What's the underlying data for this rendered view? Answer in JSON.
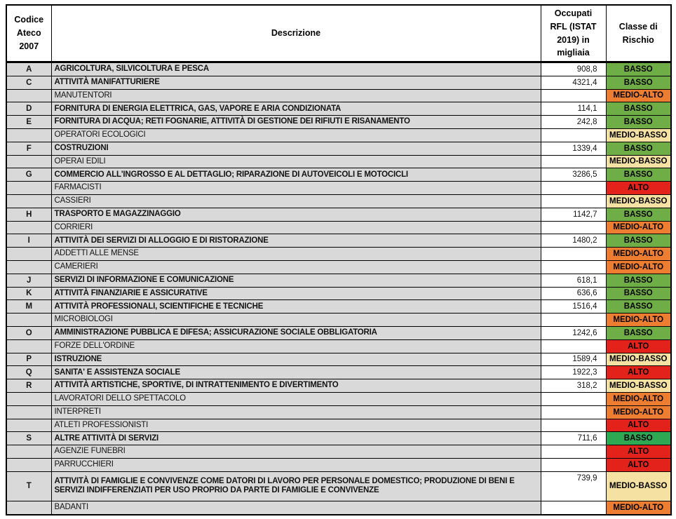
{
  "page": {
    "background_color": "#ffffff",
    "border_color": "#000000",
    "row_gray": "#d9d9d9"
  },
  "table": {
    "headers": {
      "code": "Codice Ateco 2007",
      "description": "Descrizione",
      "occupied": "Occupati RFL (ISTAT 2019) in migliaia",
      "risk": "Classe di Rischio"
    },
    "risk_colors": {
      "basso": "#6fad47",
      "basso_bright": "#2ea853",
      "medio_basso": "#f5e2a2",
      "medio_alto": "#ed7d31",
      "alto": "#e3231b"
    },
    "rows": [
      {
        "code": "A",
        "description": "AGRICOLTURA, SILVICOLTURA E PESCA",
        "value": "908,8",
        "risk": "BASSO",
        "risk_key": "basso",
        "main": true
      },
      {
        "code": "C",
        "description": "ATTIVITÀ MANIFATTURIERE",
        "value": "4321,4",
        "risk": "BASSO",
        "risk_key": "basso",
        "main": true
      },
      {
        "code": "",
        "description": "MANUTENTORI",
        "value": "",
        "risk": "MEDIO-ALTO",
        "risk_key": "medio_alto",
        "main": false
      },
      {
        "code": "D",
        "description": "FORNITURA DI ENERGIA ELETTRICA, GAS, VAPORE E ARIA CONDIZIONATA",
        "value": "114,1",
        "risk": "BASSO",
        "risk_key": "basso",
        "main": true
      },
      {
        "code": "E",
        "description": "FORNITURA DI ACQUA; RETI FOGNARIE, ATTIVITÀ DI GESTIONE DEI RIFIUTI E RISANAMENTO",
        "value": "242,8",
        "risk": "BASSO",
        "risk_key": "basso",
        "main": true
      },
      {
        "code": "",
        "description": "OPERATORI ECOLOGICI",
        "value": "",
        "risk": "MEDIO-BASSO",
        "risk_key": "medio_basso",
        "main": false
      },
      {
        "code": "F",
        "description": "COSTRUZIONI",
        "value": "1339,4",
        "risk": "BASSO",
        "risk_key": "basso",
        "main": true
      },
      {
        "code": "",
        "description": "OPERAI EDILI",
        "value": "",
        "risk": "MEDIO-BASSO",
        "risk_key": "medio_basso",
        "main": false
      },
      {
        "code": "G",
        "description": "COMMERCIO ALL'INGROSSO E AL DETTAGLIO; RIPARAZIONE DI AUTOVEICOLI E MOTOCICLI",
        "value": "3286,5",
        "risk": "BASSO",
        "risk_key": "basso",
        "main": true
      },
      {
        "code": "",
        "description": "FARMACISTI",
        "value": "",
        "risk": "ALTO",
        "risk_key": "alto",
        "main": false
      },
      {
        "code": "",
        "description": "CASSIERI",
        "value": "",
        "risk": "MEDIO-BASSO",
        "risk_key": "medio_basso",
        "main": false
      },
      {
        "code": "H",
        "description": "TRASPORTO E MAGAZZINAGGIO",
        "value": "1142,7",
        "risk": "BASSO",
        "risk_key": "basso",
        "main": true
      },
      {
        "code": "",
        "description": "CORRIERI",
        "value": "",
        "risk": "MEDIO-ALTO",
        "risk_key": "medio_alto",
        "main": false
      },
      {
        "code": "I",
        "description": "ATTIVITÀ DEI SERVIZI DI ALLOGGIO E DI RISTORAZIONE",
        "value": "1480,2",
        "risk": "BASSO",
        "risk_key": "basso",
        "main": true
      },
      {
        "code": "",
        "description": "ADDETTI ALLE MENSE",
        "value": "",
        "risk": "MEDIO-ALTO",
        "risk_key": "medio_alto",
        "main": false
      },
      {
        "code": "",
        "description": "CAMERIERI",
        "value": "",
        "risk": "MEDIO-ALTO",
        "risk_key": "medio_alto",
        "main": false
      },
      {
        "code": "J",
        "description": "SERVIZI DI INFORMAZIONE E COMUNICAZIONE",
        "value": "618,1",
        "risk": "BASSO",
        "risk_key": "basso",
        "main": true
      },
      {
        "code": "K",
        "description": "ATTIVITÀ FINANZIARIE E ASSICURATIVE",
        "value": "636,6",
        "risk": "BASSO",
        "risk_key": "basso",
        "main": true
      },
      {
        "code": "M",
        "description": "ATTIVITÀ PROFESSIONALI, SCIENTIFICHE E TECNICHE",
        "value": "1516,4",
        "risk": "BASSO",
        "risk_key": "basso",
        "main": true
      },
      {
        "code": "",
        "description": "MICROBIOLOGI",
        "value": "",
        "risk": "MEDIO-ALTO",
        "risk_key": "medio_alto",
        "main": false
      },
      {
        "code": "O",
        "description": "AMMINISTRAZIONE PUBBLICA E DIFESA; ASSICURAZIONE SOCIALE OBBLIGATORIA",
        "value": "1242,6",
        "risk": "BASSO",
        "risk_key": "basso",
        "main": true
      },
      {
        "code": "",
        "description": "FORZE DELL'ORDINE",
        "value": "",
        "risk": "ALTO",
        "risk_key": "alto",
        "main": false
      },
      {
        "code": "P",
        "description": "ISTRUZIONE",
        "value": "1589,4",
        "risk": "MEDIO-BASSO",
        "risk_key": "medio_basso",
        "main": true
      },
      {
        "code": "Q",
        "description": "SANITA' E ASSISTENZA SOCIALE",
        "value": "1922,3",
        "risk": "ALTO",
        "risk_key": "alto",
        "main": true
      },
      {
        "code": "R",
        "description": "ATTIVITÀ ARTISTICHE, SPORTIVE, DI INTRATTENIMENTO E DIVERTIMENTO",
        "value": "318,2",
        "risk": "MEDIO-BASSO",
        "risk_key": "medio_basso",
        "main": true
      },
      {
        "code": "",
        "description": "LAVORATORI DELLO SPETTACOLO",
        "value": "",
        "risk": "MEDIO-ALTO",
        "risk_key": "medio_alto",
        "main": false
      },
      {
        "code": "",
        "description": "INTERPRETI",
        "value": "",
        "risk": "MEDIO-ALTO",
        "risk_key": "medio_alto",
        "main": false
      },
      {
        "code": "",
        "description": "ATLETI PROFESSIONISTI",
        "value": "",
        "risk": "ALTO",
        "risk_key": "alto",
        "main": false
      },
      {
        "code": "S",
        "description": "ALTRE ATTIVITÀ DI SERVIZI",
        "value": "711,6",
        "risk": "BASSO",
        "risk_key": "basso_bright",
        "main": true
      },
      {
        "code": "",
        "description": "AGENZIE FUNEBRI",
        "value": "",
        "risk": "ALTO",
        "risk_key": "alto",
        "main": false
      },
      {
        "code": "",
        "description": "PARRUCCHIERI",
        "value": "",
        "risk": "ALTO",
        "risk_key": "alto",
        "main": false
      },
      {
        "code": "T",
        "description": "ATTIVITÀ DI FAMIGLIE E CONVIVENZE COME DATORI DI LAVORO PER PERSONALE DOMESTICO; PRODUZIONE DI BENI E SERVIZI INDIFFERENZIATI PER USO PROPRIO DA PARTE DI FAMIGLIE E CONVIVENZE",
        "value": "739,9",
        "risk": "MEDIO-BASSO",
        "risk_key": "medio_basso",
        "main": true,
        "tall": true
      },
      {
        "code": "",
        "description": "BADANTI",
        "value": "",
        "risk": "MEDIO-ALTO",
        "risk_key": "medio_alto",
        "main": false
      }
    ]
  }
}
